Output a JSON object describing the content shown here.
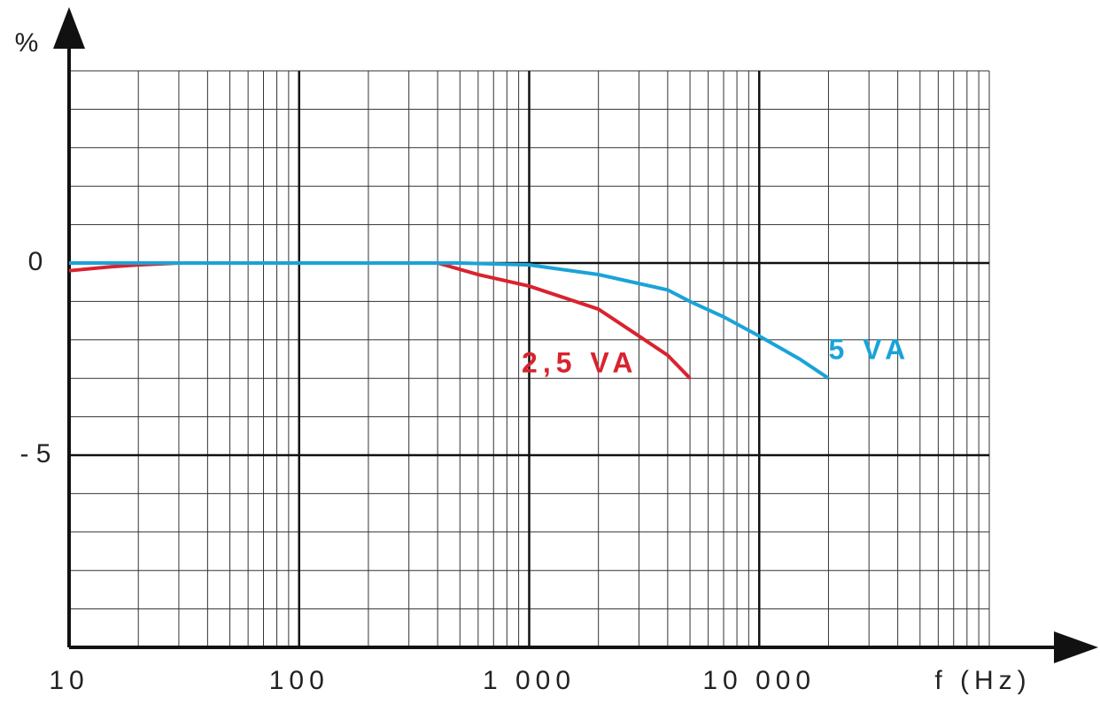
{
  "chart_data": {
    "type": "line",
    "x_label": "f (Hz)",
    "y_label": "%",
    "log_x": true,
    "grid": true,
    "xlim": [
      10,
      100000
    ],
    "ylim": [
      -10,
      5
    ],
    "xticks": [
      10,
      100,
      {
        "value": 1000,
        "label": "1 000"
      },
      {
        "value": 10000,
        "label": "10 000"
      }
    ],
    "yticks": [
      0,
      {
        "value": -5,
        "label": "- 5"
      }
    ],
    "x_minor_grid": [
      20,
      30,
      40,
      50,
      60,
      70,
      80,
      90,
      200,
      300,
      400,
      500,
      600,
      700,
      800,
      900,
      2000,
      3000,
      4000,
      5000,
      6000,
      7000,
      8000,
      9000,
      20000,
      30000,
      40000,
      50000,
      60000,
      70000,
      80000,
      90000,
      100000
    ],
    "y_minor_grid": [
      5,
      4,
      3,
      2,
      1,
      -1,
      -2,
      -3,
      -4,
      -6,
      -7,
      -8,
      -9,
      -10
    ],
    "series": [
      {
        "name": "2,5 VA",
        "color": "#d9232e",
        "x": [
          10,
          15,
          20,
          30,
          100,
          400,
          600,
          1000,
          2000,
          3000,
          4000,
          5000
        ],
        "values": [
          -0.2,
          -0.1,
          -0.05,
          0,
          0,
          0,
          -0.3,
          -0.6,
          -1.2,
          -1.9,
          -2.4,
          -3
        ]
      },
      {
        "name": "5 VA",
        "color": "#1aa3d8",
        "x": [
          10,
          20,
          100,
          500,
          1000,
          2000,
          4000,
          5000,
          7000,
          10000,
          15000,
          20000
        ],
        "values": [
          0,
          0,
          0,
          0,
          -0.05,
          -0.3,
          -0.7,
          -1.0,
          -1.4,
          -1.9,
          -2.5,
          -3
        ]
      }
    ]
  }
}
